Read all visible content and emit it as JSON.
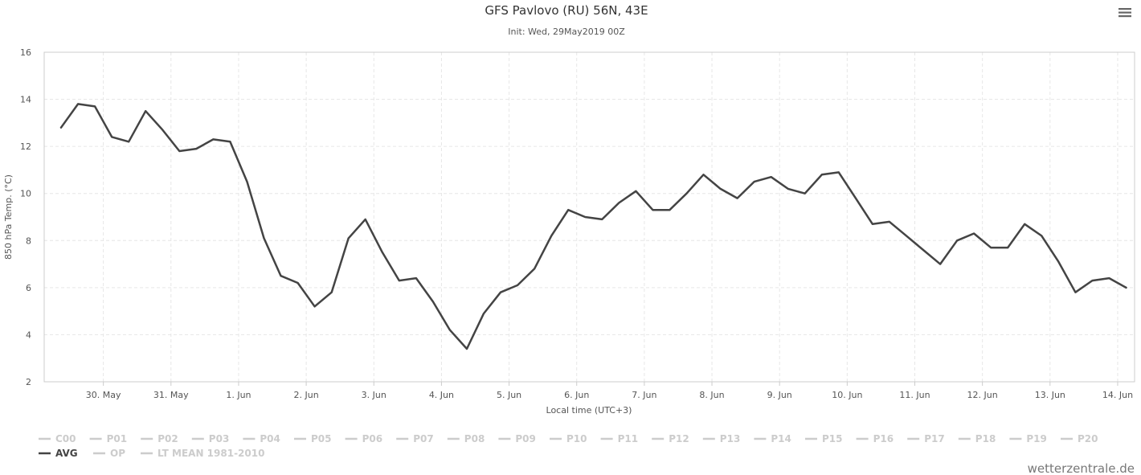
{
  "header": {
    "title": "GFS Pavlovo (RU) 56N, 43E",
    "subtitle": "Init: Wed, 29May2019 00Z"
  },
  "menu_icon": "hamburger-menu-icon",
  "credits": "wetterzentrale.de",
  "colors": {
    "avg_line": "#444444",
    "inactive_legend": "#cccccc",
    "grid": "#e6e6e6",
    "axis": "#cccccc"
  },
  "chart_data": {
    "type": "line",
    "title": "GFS Pavlovo (RU) 56N, 43E",
    "subtitle": "Init: Wed, 29May2019 00Z",
    "xlabel": "Local time (UTC+3)",
    "ylabel": "850 hPa Temp. (°C)",
    "ylim": [
      2,
      16
    ],
    "yticks": [
      2,
      4,
      6,
      8,
      10,
      12,
      14,
      16
    ],
    "x_unit": "days (date axis)",
    "xlim": [
      "29 May 2019 03:00",
      "14 Jun 2019 06:00"
    ],
    "xticks": [
      {
        "label": "30. May",
        "date": "30 May 2019"
      },
      {
        "label": "31. May",
        "date": "31 May 2019"
      },
      {
        "label": "1. Jun",
        "date": "1 Jun 2019"
      },
      {
        "label": "2. Jun",
        "date": "2 Jun 2019"
      },
      {
        "label": "3. Jun",
        "date": "3 Jun 2019"
      },
      {
        "label": "4. Jun",
        "date": "4 Jun 2019"
      },
      {
        "label": "5. Jun",
        "date": "5 Jun 2019"
      },
      {
        "label": "6. Jun",
        "date": "6 Jun 2019"
      },
      {
        "label": "7. Jun",
        "date": "7 Jun 2019"
      },
      {
        "label": "8. Jun",
        "date": "8 Jun 2019"
      },
      {
        "label": "9. Jun",
        "date": "9 Jun 2019"
      },
      {
        "label": "10. Jun",
        "date": "10 Jun 2019"
      },
      {
        "label": "11. Jun",
        "date": "11 Jun 2019"
      },
      {
        "label": "12. Jun",
        "date": "12 Jun 2019"
      },
      {
        "label": "13. Jun",
        "date": "13 Jun 2019"
      },
      {
        "label": "14. Jun",
        "date": "14 Jun 2019"
      }
    ],
    "grid": true,
    "legend_placement": "bottom-left",
    "series": [
      {
        "name": "AVG",
        "x": [
          "29 May 2019 09:00",
          "29 May 2019 15:00",
          "29 May 2019 21:00",
          "30 May 2019 03:00",
          "30 May 2019 09:00",
          "30 May 2019 15:00",
          "30 May 2019 21:00",
          "31 May 2019 03:00",
          "31 May 2019 09:00",
          "31 May 2019 15:00",
          "31 May 2019 21:00",
          "1 Jun 2019 03:00",
          "1 Jun 2019 09:00",
          "1 Jun 2019 15:00",
          "1 Jun 2019 21:00",
          "2 Jun 2019 03:00",
          "2 Jun 2019 09:00",
          "2 Jun 2019 15:00",
          "2 Jun 2019 21:00",
          "3 Jun 2019 03:00",
          "3 Jun 2019 09:00",
          "3 Jun 2019 15:00",
          "3 Jun 2019 21:00",
          "4 Jun 2019 03:00",
          "4 Jun 2019 09:00",
          "4 Jun 2019 15:00",
          "4 Jun 2019 21:00",
          "5 Jun 2019 03:00",
          "5 Jun 2019 09:00",
          "5 Jun 2019 15:00",
          "5 Jun 2019 21:00",
          "6 Jun 2019 03:00",
          "6 Jun 2019 09:00",
          "6 Jun 2019 15:00",
          "6 Jun 2019 21:00",
          "7 Jun 2019 03:00",
          "7 Jun 2019 09:00",
          "7 Jun 2019 15:00",
          "7 Jun 2019 21:00",
          "8 Jun 2019 03:00",
          "8 Jun 2019 09:00",
          "8 Jun 2019 15:00",
          "8 Jun 2019 21:00",
          "9 Jun 2019 03:00",
          "9 Jun 2019 09:00",
          "9 Jun 2019 15:00",
          "9 Jun 2019 21:00",
          "10 Jun 2019 03:00",
          "10 Jun 2019 09:00",
          "10 Jun 2019 15:00",
          "10 Jun 2019 21:00",
          "11 Jun 2019 03:00",
          "11 Jun 2019 09:00",
          "11 Jun 2019 15:00",
          "11 Jun 2019 21:00",
          "12 Jun 2019 03:00",
          "12 Jun 2019 09:00",
          "12 Jun 2019 15:00",
          "12 Jun 2019 21:00",
          "13 Jun 2019 03:00",
          "13 Jun 2019 09:00",
          "13 Jun 2019 15:00",
          "13 Jun 2019 21:00",
          "14 Jun 2019 03:00"
        ],
        "values": [
          12.8,
          13.8,
          13.7,
          12.4,
          12.2,
          13.5,
          12.7,
          11.8,
          11.9,
          12.3,
          12.2,
          10.5,
          8.1,
          6.5,
          6.2,
          5.2,
          5.8,
          8.1,
          8.9,
          7.5,
          6.3,
          6.4,
          5.4,
          4.2,
          3.4,
          4.9,
          5.8,
          6.1,
          6.8,
          8.2,
          9.3,
          9.0,
          8.9,
          9.6,
          10.1,
          9.3,
          9.3,
          10.0,
          10.8,
          10.2,
          9.8,
          10.5,
          10.7,
          10.2,
          10.0,
          10.8,
          10.9,
          9.8,
          8.7,
          8.8,
          8.2,
          7.6,
          7.0,
          8.0,
          8.3,
          7.7,
          7.7,
          8.7,
          8.2,
          7.1,
          5.8,
          6.3,
          6.4,
          6.0
        ],
        "color": "#444444"
      }
    ],
    "legend": [
      {
        "label": "C00",
        "active": false
      },
      {
        "label": "P01",
        "active": false
      },
      {
        "label": "P02",
        "active": false
      },
      {
        "label": "P03",
        "active": false
      },
      {
        "label": "P04",
        "active": false
      },
      {
        "label": "P05",
        "active": false
      },
      {
        "label": "P06",
        "active": false
      },
      {
        "label": "P07",
        "active": false
      },
      {
        "label": "P08",
        "active": false
      },
      {
        "label": "P09",
        "active": false
      },
      {
        "label": "P10",
        "active": false
      },
      {
        "label": "P11",
        "active": false
      },
      {
        "label": "P12",
        "active": false
      },
      {
        "label": "P13",
        "active": false
      },
      {
        "label": "P14",
        "active": false
      },
      {
        "label": "P15",
        "active": false
      },
      {
        "label": "P16",
        "active": false
      },
      {
        "label": "P17",
        "active": false
      },
      {
        "label": "P18",
        "active": false
      },
      {
        "label": "P19",
        "active": false
      },
      {
        "label": "P20",
        "active": false
      },
      {
        "label": "AVG",
        "active": true
      },
      {
        "label": "OP",
        "active": false
      },
      {
        "label": "LT MEAN 1981-2010",
        "active": false
      }
    ]
  }
}
